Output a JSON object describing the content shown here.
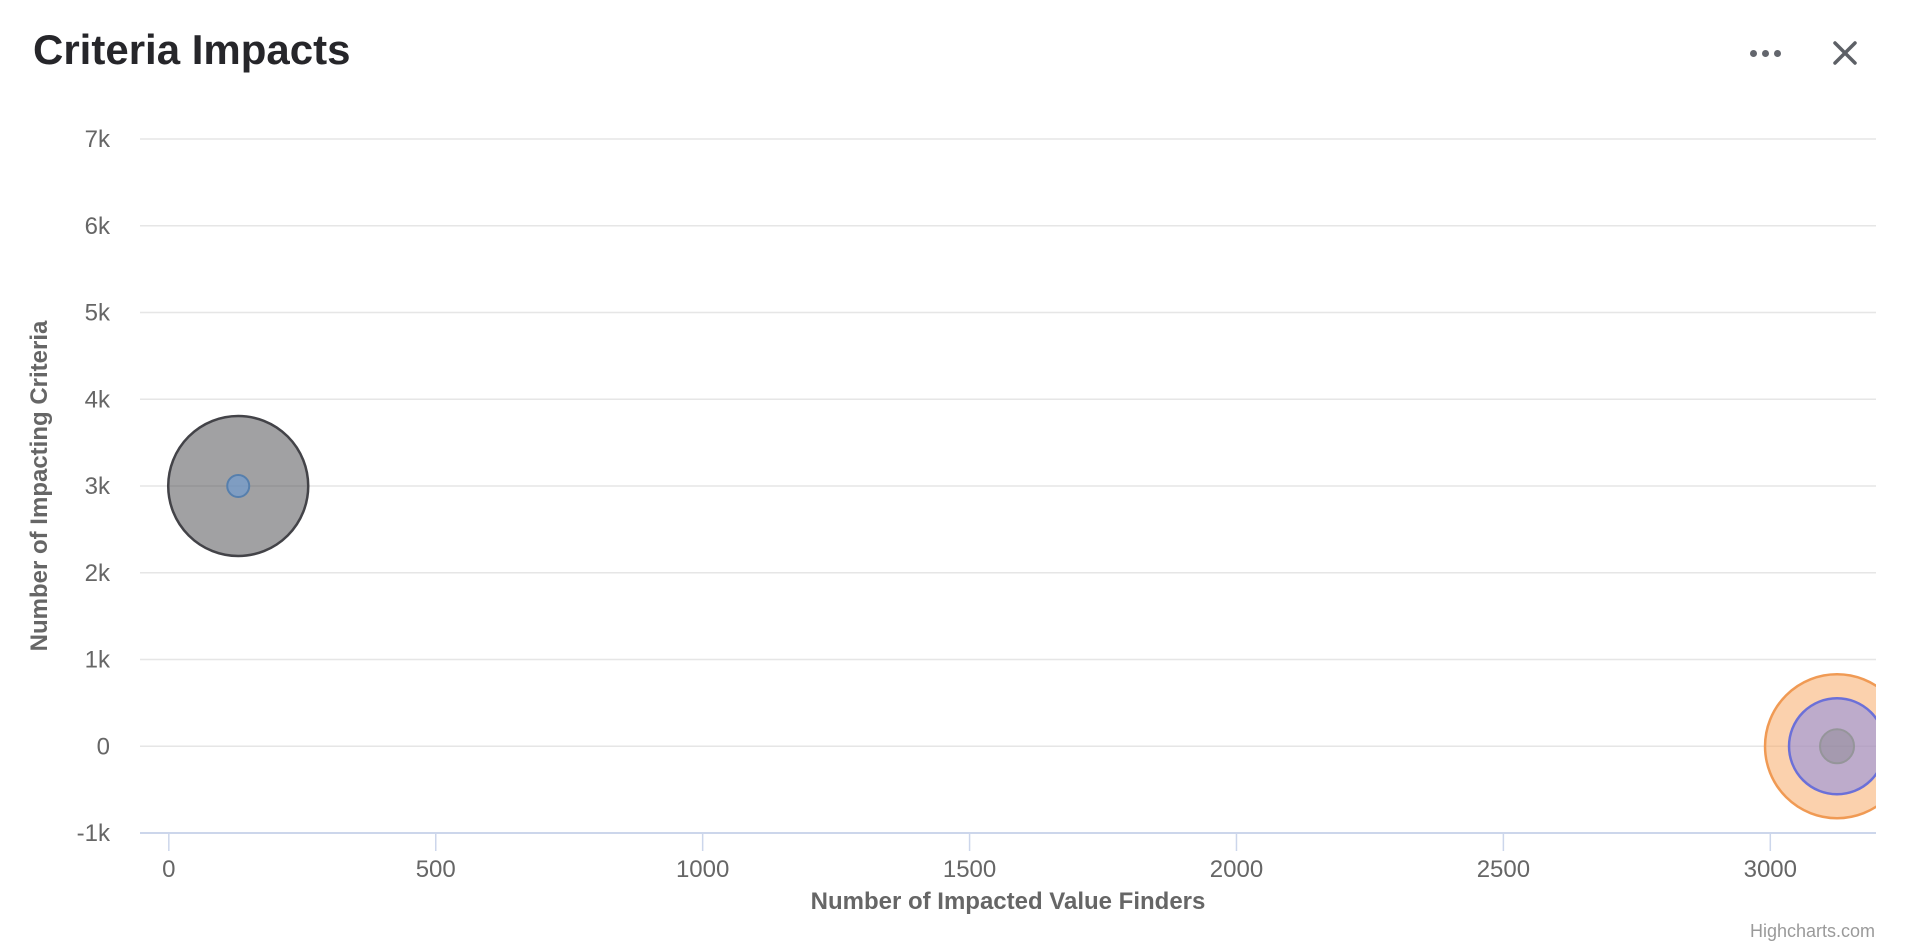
{
  "header": {
    "title": "Criteria Impacts",
    "menu_icon": "ellipsis-context-menu",
    "close_icon": "close-x"
  },
  "chart": {
    "credits_label": "Highcharts.com",
    "chart_data": {
      "type": "bubble",
      "title": "Criteria Impacts",
      "xlabel": "Number of Impacted Value Finders",
      "ylabel": "Number of Impacting Criteria",
      "xlim": [
        -54,
        3198
      ],
      "ylim": [
        -1000,
        7000
      ],
      "grid": "horizontal-only",
      "legend": "none",
      "x_ticks": [
        {
          "value": 0,
          "label": "0"
        },
        {
          "value": 500,
          "label": "500"
        },
        {
          "value": 1000,
          "label": "1000"
        },
        {
          "value": 1500,
          "label": "1500"
        },
        {
          "value": 2000,
          "label": "2000"
        },
        {
          "value": 2500,
          "label": "2500"
        },
        {
          "value": 3000,
          "label": "3000"
        }
      ],
      "y_ticks": [
        {
          "value": 7000,
          "label": "7k"
        },
        {
          "value": 6000,
          "label": "6k"
        },
        {
          "value": 5000,
          "label": "5k"
        },
        {
          "value": 4000,
          "label": "4k"
        },
        {
          "value": 3000,
          "label": "3k"
        },
        {
          "value": 2000,
          "label": "2k"
        },
        {
          "value": 1000,
          "label": "1k"
        },
        {
          "value": 0,
          "label": "0"
        },
        {
          "value": -1000,
          "label": "-1k"
        }
      ],
      "series": [
        {
          "name": "bubble-gray-large",
          "point": {
            "x": 130,
            "y": 3000
          },
          "radius_px": 70,
          "stroke": "#434348",
          "stroke_width": 2.5,
          "fill": "rgba(67,67,72,0.5)"
        },
        {
          "name": "bubble-blue-small",
          "point": {
            "x": 130,
            "y": 3000
          },
          "radius_px": 11,
          "stroke": "#567fad",
          "stroke_width": 2,
          "fill": "rgba(109,155,211,0.65)"
        },
        {
          "name": "bubble-orange-large",
          "point": {
            "x": 3125,
            "y": 0
          },
          "radius_px": 72,
          "stroke": "#f09a54",
          "stroke_width": 2.5,
          "fill": "rgba(247,163,92,0.5)"
        },
        {
          "name": "bubble-purple-medium",
          "point": {
            "x": 3125,
            "y": 0
          },
          "radius_px": 48,
          "stroke": "#6b70d8",
          "stroke_width": 2.5,
          "fill": "rgba(128,133,233,0.5)"
        },
        {
          "name": "bubble-gray-small",
          "point": {
            "x": 3125,
            "y": 0
          },
          "radius_px": 17,
          "stroke": "#95959a",
          "stroke_width": 2,
          "fill": "rgba(125,125,128,0.38)"
        }
      ],
      "colors": {
        "grid": "#e6e6e6",
        "axis_line": "#ccd6eb",
        "tick_label": "#666666",
        "axis_title": "#666666",
        "chart_title": "#26262a",
        "credits": "#9a9a9a"
      }
    }
  }
}
